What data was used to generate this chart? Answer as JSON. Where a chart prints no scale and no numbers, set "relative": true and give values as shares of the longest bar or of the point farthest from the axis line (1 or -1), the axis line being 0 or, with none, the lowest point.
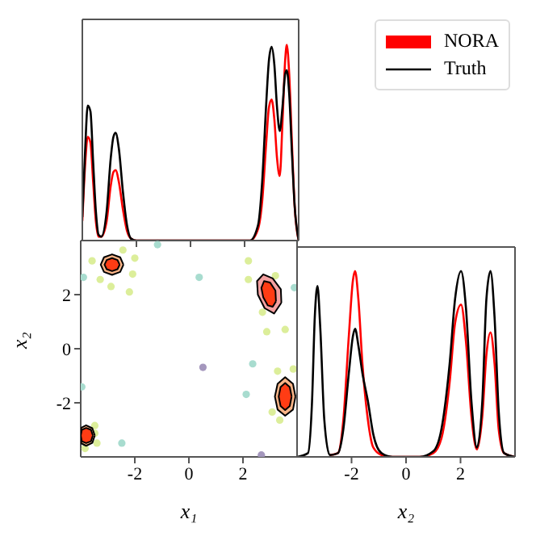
{
  "chart_data": [
    {
      "type": "line",
      "relative": true,
      "xlim": [
        -4,
        4
      ],
      "xticks": [
        -2,
        0,
        2
      ],
      "tick_labels": false,
      "legend": "right",
      "series": [
        {
          "name": "NORA",
          "color": "#ff0000",
          "x": [
            -4,
            -3.9,
            -3.8,
            -3.7,
            -3.6,
            -3.5,
            -3.4,
            -3.3,
            -3.1,
            -2.95,
            -2.85,
            -2.77,
            -2.65,
            -2.5,
            -2.35,
            -2.2,
            -2,
            2.2,
            2.5,
            2.65,
            2.8,
            2.9,
            3.0,
            3.1,
            3.2,
            3.3,
            3.4,
            3.5,
            3.56,
            3.65,
            3.75,
            3.85,
            4
          ],
          "values": [
            0.1,
            0.38,
            0.53,
            0.5,
            0.3,
            0.1,
            0.02,
            0.02,
            0.1,
            0.28,
            0.35,
            0.36,
            0.3,
            0.16,
            0.05,
            0.01,
            0,
            0,
            0.06,
            0.2,
            0.5,
            0.68,
            0.72,
            0.62,
            0.42,
            0.33,
            0.6,
            0.92,
            1.0,
            0.85,
            0.5,
            0.18,
            0
          ]
        },
        {
          "name": "Truth",
          "color": "#000000",
          "x": [
            -4,
            -3.9,
            -3.8,
            -3.7,
            -3.6,
            -3.5,
            -3.4,
            -3.3,
            -3.1,
            -2.95,
            -2.85,
            -2.77,
            -2.65,
            -2.5,
            -2.35,
            -2.2,
            -2,
            2.2,
            2.5,
            2.65,
            2.8,
            2.9,
            3.0,
            3.1,
            3.2,
            3.3,
            3.4,
            3.5,
            3.56,
            3.65,
            3.75,
            3.85,
            4
          ],
          "values": [
            0.12,
            0.45,
            0.69,
            0.66,
            0.4,
            0.15,
            0.03,
            0.02,
            0.15,
            0.42,
            0.53,
            0.55,
            0.47,
            0.25,
            0.08,
            0.01,
            0,
            0,
            0.08,
            0.3,
            0.7,
            0.92,
            0.99,
            0.9,
            0.68,
            0.56,
            0.68,
            0.85,
            0.87,
            0.75,
            0.45,
            0.18,
            0
          ]
        }
      ]
    },
    {
      "type": "scatter",
      "xlabel": "x₁",
      "ylabel": "x₂",
      "xlim": [
        -4,
        4
      ],
      "ylim": [
        -4,
        4
      ],
      "xticks": [
        -2,
        0,
        2
      ],
      "yticks": [
        -2,
        0,
        2
      ],
      "series": [
        {
          "color": "#dcee9a",
          "x": [
            -3.58,
            -3.28,
            -2.44,
            -2.0,
            -2.08,
            -2.2,
            -2.88,
            2.2,
            2.2,
            3.2,
            2.72,
            2.88,
            3.56,
            3.28,
            3.08,
            3.36,
            3.86,
            -3.48,
            -3.4,
            -3.84,
            -3.48
          ],
          "values": [
            3.25,
            2.56,
            3.65,
            3.35,
            2.76,
            2.1,
            2.3,
            3.25,
            2.56,
            2.7,
            1.35,
            0.63,
            0.71,
            -0.83,
            -2.34,
            -2.64,
            -0.75,
            -2.84,
            -3.49,
            -3.69,
            -3.13
          ]
        },
        {
          "color": "#a8dccf",
          "x": [
            -1.16,
            -3.9,
            0.38,
            3.9,
            2.36,
            2.12,
            -3.96,
            -2.48
          ],
          "values": [
            3.85,
            2.64,
            2.64,
            2.26,
            -0.56,
            -1.69,
            -1.41,
            -3.49
          ]
        },
        {
          "color": "#a497bd",
          "x": [
            0.52,
            2.68
          ],
          "values": [
            -0.69,
            -3.93
          ]
        },
        {
          "type": "area",
          "color": "#f9b487",
          "x": [
            -2.42,
            -2.54,
            -2.84,
            -3.14,
            -3.26,
            -3.14,
            -2.84,
            -2.54,
            -2.42
          ],
          "values": [
            3.11,
            3.38,
            3.49,
            3.38,
            3.11,
            2.84,
            2.73,
            2.84,
            3.11
          ]
        },
        {
          "type": "area",
          "color": "#ff3c14",
          "x": [
            -2.56,
            -2.64,
            -2.84,
            -3.04,
            -3.12,
            -3.04,
            -2.84,
            -2.64,
            -2.56
          ],
          "values": [
            3.11,
            3.28,
            3.35,
            3.28,
            3.11,
            2.94,
            2.87,
            2.94,
            3.11
          ]
        },
        {
          "type": "area",
          "color": "#f4a0a0",
          "x": [
            3.42,
            3.4,
            3.1,
            2.75,
            2.52,
            2.55,
            2.8,
            3.15,
            3.42
          ],
          "values": [
            1.7,
            2.2,
            2.6,
            2.75,
            2.5,
            2.0,
            1.5,
            1.3,
            1.7
          ]
        },
        {
          "type": "area",
          "color": "#ff3c14",
          "x": [
            3.22,
            3.2,
            3.0,
            2.78,
            2.68,
            2.75,
            2.92,
            3.1,
            3.22
          ],
          "values": [
            1.75,
            2.15,
            2.45,
            2.5,
            2.25,
            1.9,
            1.6,
            1.55,
            1.75
          ]
        },
        {
          "type": "area",
          "color": "#f9b487",
          "x": [
            3.94,
            3.85,
            3.56,
            3.28,
            3.18,
            3.28,
            3.56,
            3.85,
            3.94
          ],
          "values": [
            -1.77,
            -1.3,
            -1.05,
            -1.3,
            -1.77,
            -2.25,
            -2.48,
            -2.25,
            -1.77
          ]
        },
        {
          "type": "area",
          "color": "#ff3c14",
          "x": [
            3.8,
            3.73,
            3.56,
            3.39,
            3.32,
            3.39,
            3.56,
            3.73,
            3.8
          ],
          "values": [
            -1.77,
            -1.42,
            -1.27,
            -1.42,
            -1.77,
            -2.12,
            -2.27,
            -2.12,
            -1.77
          ]
        },
        {
          "type": "area",
          "color": "#f9b487",
          "x": [
            -3.48,
            -3.57,
            -3.8,
            -3.98,
            -4,
            -3.98,
            -3.8,
            -3.57,
            -3.48
          ],
          "values": [
            -3.21,
            -2.94,
            -2.83,
            -2.92,
            -3.21,
            -3.5,
            -3.59,
            -3.48,
            -3.21
          ]
        },
        {
          "type": "area",
          "color": "#ff3c14",
          "x": [
            -3.55,
            -3.62,
            -3.8,
            -3.96,
            -4,
            -3.96,
            -3.8,
            -3.62,
            -3.55
          ],
          "values": [
            -3.21,
            -3.0,
            -2.93,
            -3.0,
            -3.21,
            -3.42,
            -3.49,
            -3.42,
            -3.21
          ]
        }
      ]
    },
    {
      "type": "line",
      "relative": true,
      "xlabel": "x₂",
      "xlim": [
        -4,
        4
      ],
      "xticks": [
        -2,
        0,
        2
      ],
      "tick_labels": "x",
      "series": [
        {
          "color": "#ff0000",
          "x": [
            -2.8,
            -2.5,
            -2.3,
            -2.1,
            -1.95,
            -1.87,
            -1.75,
            -1.6,
            -1.4,
            -1.2,
            -0.9,
            -0.5,
            0.5,
            1.0,
            1.3,
            1.6,
            1.8,
            2.02,
            2.2,
            2.4,
            2.6,
            2.8,
            2.95,
            3.1,
            3.25,
            3.4,
            3.6,
            4
          ],
          "values": [
            0.01,
            0.02,
            0.2,
            0.65,
            0.95,
            1.0,
            0.85,
            0.5,
            0.2,
            0.05,
            0.01,
            0,
            0,
            0.02,
            0.1,
            0.4,
            0.72,
            0.82,
            0.62,
            0.22,
            0.04,
            0.22,
            0.55,
            0.67,
            0.5,
            0.15,
            0.02,
            0
          ]
        },
        {
          "color": "#000000",
          "x": [
            -4,
            -3.6,
            -3.45,
            -3.35,
            -3.25,
            -3.15,
            -3.0,
            -2.8,
            -2.5,
            -2.3,
            -2.1,
            -1.95,
            -1.87,
            -1.75,
            -1.6,
            -1.4,
            -1.2,
            -0.9,
            -0.5,
            0.5,
            1.0,
            1.3,
            1.6,
            1.8,
            2.02,
            2.2,
            2.4,
            2.6,
            2.8,
            2.95,
            3.1,
            3.25,
            3.4,
            3.6,
            4
          ],
          "values": [
            0,
            0.02,
            0.3,
            0.75,
            0.92,
            0.7,
            0.2,
            0.01,
            0.02,
            0.15,
            0.45,
            0.65,
            0.69,
            0.6,
            0.45,
            0.3,
            0.12,
            0.02,
            0,
            0,
            0.03,
            0.15,
            0.5,
            0.85,
            1.0,
            0.8,
            0.3,
            0.05,
            0.3,
            0.85,
            1.0,
            0.75,
            0.25,
            0.02,
            0
          ]
        }
      ]
    }
  ]
}
